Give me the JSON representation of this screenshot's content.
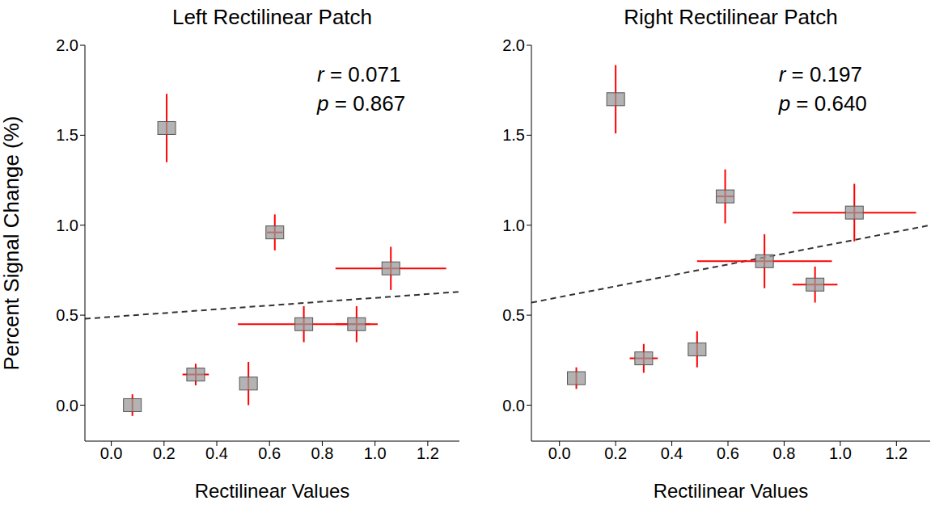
{
  "chart_data": [
    {
      "type": "scatter",
      "title": "Left Rectilinear Patch",
      "xlabel": "Rectilinear Values",
      "ylabel": "Percent Signal Change (%)",
      "annotations": [
        "r = 0.071",
        "p = 0.867"
      ],
      "xlim": [
        -0.1,
        1.32
      ],
      "ylim": [
        -0.2,
        2.0
      ],
      "xticks": [
        {
          "value": 0,
          "label": "0.0"
        },
        {
          "value": 0.2,
          "label": "0.2"
        },
        {
          "value": 0.4,
          "label": "0.4"
        },
        {
          "value": 0.6,
          "label": "0.6"
        },
        {
          "value": 0.8,
          "label": "0.8"
        },
        {
          "value": 1,
          "label": "1.0"
        },
        {
          "value": 1.2,
          "label": "1.2"
        }
      ],
      "yticks": [
        {
          "value": 0,
          "label": "0.0"
        },
        {
          "value": 0.5,
          "label": "0.5"
        },
        {
          "value": 1,
          "label": "1.0"
        },
        {
          "value": 1.5,
          "label": "1.5"
        },
        {
          "value": 2,
          "label": "2.0"
        }
      ],
      "series": [
        {
          "type": "scatter",
          "marker": "square",
          "color": "#9a9a9a",
          "x": [
            0.08,
            0.21,
            0.32,
            0.52,
            0.62,
            0.73,
            0.93,
            1.06
          ],
          "values": [
            0.0,
            1.54,
            0.17,
            0.12,
            0.96,
            0.45,
            0.45,
            0.76
          ],
          "x_err": [
            0.0,
            0.0,
            0.05,
            0.0,
            0.03,
            0.25,
            0.08,
            0.21
          ],
          "y_err": [
            0.06,
            0.19,
            0.06,
            0.12,
            0.1,
            0.1,
            0.1,
            0.12
          ]
        },
        {
          "type": "line",
          "line_style": "dashed",
          "color": "#333333",
          "x": [
            -0.1,
            1.32
          ],
          "values": [
            0.48,
            0.63
          ]
        }
      ]
    },
    {
      "type": "scatter",
      "title": "Right Rectilinear Patch",
      "xlabel": "Rectilinear Values",
      "annotations": [
        "r = 0.197",
        "p = 0.640"
      ],
      "xlim": [
        -0.1,
        1.32
      ],
      "ylim": [
        -0.2,
        2.0
      ],
      "xticks": [
        {
          "value": 0,
          "label": "0.0"
        },
        {
          "value": 0.2,
          "label": "0.2"
        },
        {
          "value": 0.4,
          "label": "0.4"
        },
        {
          "value": 0.6,
          "label": "0.6"
        },
        {
          "value": 0.8,
          "label": "0.8"
        },
        {
          "value": 1,
          "label": "1.0"
        },
        {
          "value": 1.2,
          "label": "1.2"
        }
      ],
      "yticks": [
        {
          "value": 0,
          "label": "0.0"
        },
        {
          "value": 0.5,
          "label": "0.5"
        },
        {
          "value": 1,
          "label": "1.0"
        },
        {
          "value": 1.5,
          "label": "1.5"
        },
        {
          "value": 2,
          "label": "2.0"
        }
      ],
      "series": [
        {
          "type": "scatter",
          "marker": "square",
          "color": "#9a9a9a",
          "x": [
            0.06,
            0.2,
            0.3,
            0.49,
            0.59,
            0.73,
            0.91,
            1.05
          ],
          "values": [
            0.15,
            1.7,
            0.26,
            0.31,
            1.16,
            0.8,
            0.67,
            1.07
          ],
          "x_err": [
            0.0,
            0.0,
            0.05,
            0.0,
            0.03,
            0.24,
            0.08,
            0.22
          ],
          "y_err": [
            0.06,
            0.19,
            0.08,
            0.1,
            0.15,
            0.15,
            0.1,
            0.16
          ]
        },
        {
          "type": "line",
          "line_style": "dashed",
          "color": "#333333",
          "x": [
            -0.1,
            1.32
          ],
          "values": [
            0.57,
            1.0
          ]
        }
      ]
    }
  ]
}
